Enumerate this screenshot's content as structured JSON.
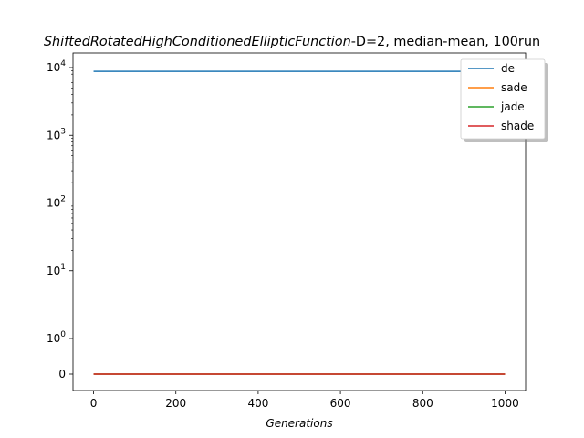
{
  "chart_data": {
    "type": "line",
    "title": {
      "italic_part": "ShiftedRotatedHighConditionedEllipticFunction",
      "rest": "-D=2, median-mean, 100run"
    },
    "xlabel": "Generations",
    "ylabel": "",
    "x_scale": "linear",
    "y_scale": "symlog",
    "xlim": [
      -50,
      1050
    ],
    "x_ticks": [
      0,
      200,
      400,
      600,
      800,
      1000
    ],
    "y_ticks": [
      {
        "value": 0,
        "label": "0"
      },
      {
        "value": 1,
        "label": "10^0"
      },
      {
        "value": 10,
        "label": "10^1"
      },
      {
        "value": 100,
        "label": "10^2"
      },
      {
        "value": 1000,
        "label": "10^3"
      },
      {
        "value": 10000,
        "label": "10^4"
      }
    ],
    "grid": false,
    "legend_position": "upper-right",
    "series": [
      {
        "name": "de",
        "color": "#1f77b4",
        "x": [
          0,
          1000
        ],
        "values": [
          8800,
          8800
        ]
      },
      {
        "name": "sade",
        "color": "#ff7f0e",
        "x": [
          0,
          1000
        ],
        "values": [
          0,
          0
        ]
      },
      {
        "name": "jade",
        "color": "#2ca02c",
        "x": [
          0,
          1000
        ],
        "values": [
          0,
          0
        ]
      },
      {
        "name": "shade",
        "color": "#d62728",
        "x": [
          0,
          1000
        ],
        "values": [
          0,
          0
        ]
      }
    ]
  }
}
